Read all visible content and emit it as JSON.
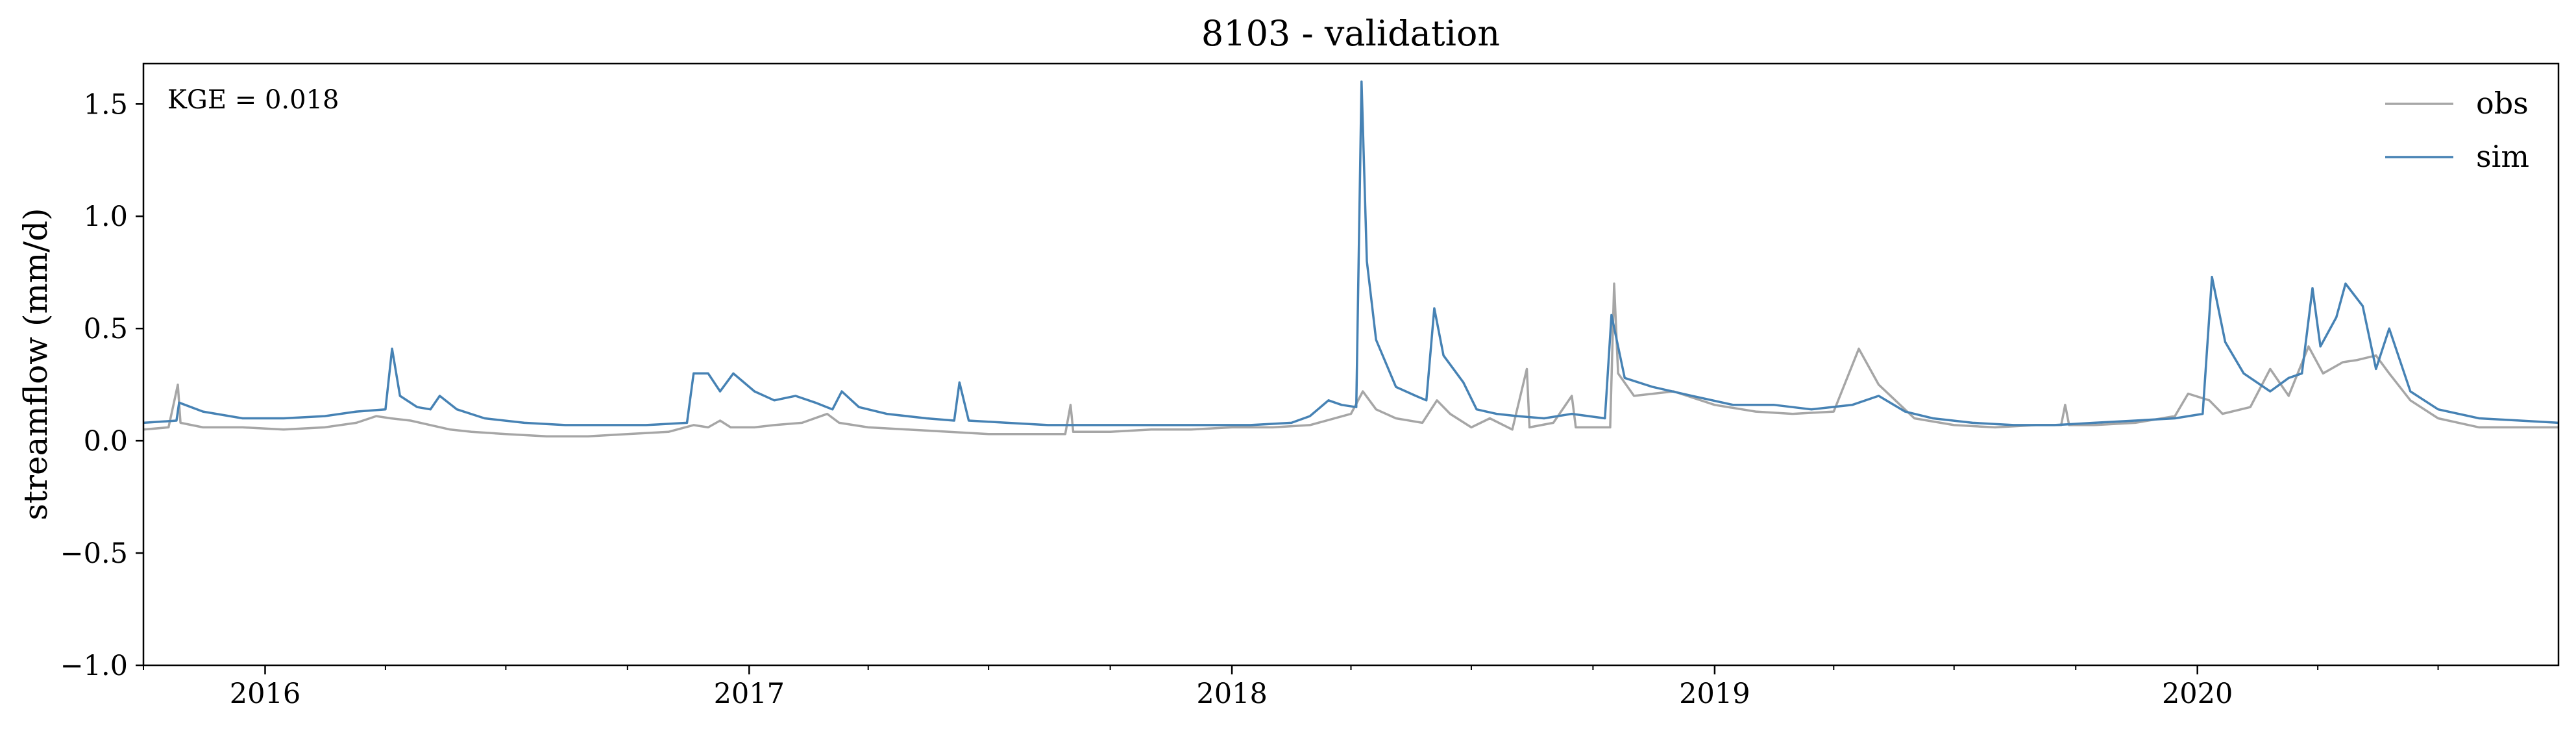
{
  "chart_data": {
    "type": "line",
    "title": "8103 - validation",
    "xlabel": "",
    "ylabel": "streamflow (mm/d)",
    "xlim": [
      "2015-10-01",
      "2020-09-30"
    ],
    "ylim": [
      -1.0,
      1.68
    ],
    "yticks": [
      -1.0,
      -0.5,
      0.0,
      0.5,
      1.0,
      1.5
    ],
    "ytick_labels": [
      "−1.0",
      "−0.5",
      "0.0",
      "0.5",
      "1.0",
      "1.5"
    ],
    "xticks": [
      "2016-01-01",
      "2017-01-01",
      "2018-01-01",
      "2019-01-01",
      "2020-01-01"
    ],
    "xtick_labels": [
      "2016",
      "2017",
      "2018",
      "2019",
      "2020"
    ],
    "grid": false,
    "legend_position": "top-right",
    "annotation": "KGE = 0.018",
    "series": [
      {
        "name": "obs",
        "color": "#a6a6a6",
        "points": [
          [
            "2015-10-01",
            0.05
          ],
          [
            "2015-10-20",
            0.06
          ],
          [
            "2015-10-27",
            0.25
          ],
          [
            "2015-10-29",
            0.08
          ],
          [
            "2015-11-15",
            0.06
          ],
          [
            "2015-12-15",
            0.06
          ],
          [
            "2016-01-15",
            0.05
          ],
          [
            "2016-02-15",
            0.06
          ],
          [
            "2016-03-10",
            0.08
          ],
          [
            "2016-03-25",
            0.11
          ],
          [
            "2016-04-05",
            0.1
          ],
          [
            "2016-04-20",
            0.09
          ],
          [
            "2016-05-05",
            0.07
          ],
          [
            "2016-05-20",
            0.05
          ],
          [
            "2016-06-05",
            0.04
          ],
          [
            "2016-07-01",
            0.03
          ],
          [
            "2016-08-01",
            0.02
          ],
          [
            "2016-09-01",
            0.02
          ],
          [
            "2016-10-01",
            0.03
          ],
          [
            "2016-11-01",
            0.04
          ],
          [
            "2016-11-20",
            0.07
          ],
          [
            "2016-12-01",
            0.06
          ],
          [
            "2016-12-10",
            0.09
          ],
          [
            "2016-12-18",
            0.06
          ],
          [
            "2017-01-05",
            0.06
          ],
          [
            "2017-01-20",
            0.07
          ],
          [
            "2017-02-10",
            0.08
          ],
          [
            "2017-03-01",
            0.12
          ],
          [
            "2017-03-10",
            0.08
          ],
          [
            "2017-04-01",
            0.06
          ],
          [
            "2017-05-01",
            0.05
          ],
          [
            "2017-06-01",
            0.04
          ],
          [
            "2017-07-01",
            0.03
          ],
          [
            "2017-08-01",
            0.03
          ],
          [
            "2017-08-28",
            0.03
          ],
          [
            "2017-09-01",
            0.16
          ],
          [
            "2017-09-03",
            0.04
          ],
          [
            "2017-10-01",
            0.04
          ],
          [
            "2017-11-01",
            0.05
          ],
          [
            "2017-12-01",
            0.05
          ],
          [
            "2018-01-01",
            0.06
          ],
          [
            "2018-02-01",
            0.06
          ],
          [
            "2018-03-01",
            0.07
          ],
          [
            "2018-04-01",
            0.12
          ],
          [
            "2018-04-10",
            0.22
          ],
          [
            "2018-04-20",
            0.14
          ],
          [
            "2018-05-05",
            0.1
          ],
          [
            "2018-05-25",
            0.08
          ],
          [
            "2018-06-05",
            0.18
          ],
          [
            "2018-06-15",
            0.12
          ],
          [
            "2018-07-01",
            0.06
          ],
          [
            "2018-07-15",
            0.1
          ],
          [
            "2018-08-01",
            0.05
          ],
          [
            "2018-08-12",
            0.32
          ],
          [
            "2018-08-14",
            0.06
          ],
          [
            "2018-09-01",
            0.08
          ],
          [
            "2018-09-15",
            0.2
          ],
          [
            "2018-09-18",
            0.06
          ],
          [
            "2018-10-14",
            0.06
          ],
          [
            "2018-10-17",
            0.7
          ],
          [
            "2018-10-20",
            0.3
          ],
          [
            "2018-11-01",
            0.2
          ],
          [
            "2018-12-01",
            0.22
          ],
          [
            "2019-01-01",
            0.16
          ],
          [
            "2019-02-01",
            0.13
          ],
          [
            "2019-03-01",
            0.12
          ],
          [
            "2019-04-01",
            0.13
          ],
          [
            "2019-04-20",
            0.41
          ],
          [
            "2019-05-05",
            0.25
          ],
          [
            "2019-06-01",
            0.1
          ],
          [
            "2019-07-01",
            0.07
          ],
          [
            "2019-08-01",
            0.06
          ],
          [
            "2019-09-01",
            0.07
          ],
          [
            "2019-09-20",
            0.07
          ],
          [
            "2019-09-23",
            0.16
          ],
          [
            "2019-09-26",
            0.07
          ],
          [
            "2019-10-15",
            0.07
          ],
          [
            "2019-11-15",
            0.08
          ],
          [
            "2019-12-15",
            0.11
          ],
          [
            "2019-12-25",
            0.21
          ],
          [
            "2020-01-10",
            0.18
          ],
          [
            "2020-01-20",
            0.12
          ],
          [
            "2020-02-10",
            0.15
          ],
          [
            "2020-02-25",
            0.32
          ],
          [
            "2020-03-10",
            0.2
          ],
          [
            "2020-03-25",
            0.42
          ],
          [
            "2020-04-05",
            0.3
          ],
          [
            "2020-04-20",
            0.35
          ],
          [
            "2020-05-01",
            0.36
          ],
          [
            "2020-05-15",
            0.38
          ],
          [
            "2020-05-25",
            0.3
          ],
          [
            "2020-06-10",
            0.18
          ],
          [
            "2020-07-01",
            0.1
          ],
          [
            "2020-08-01",
            0.06
          ],
          [
            "2020-09-01",
            0.06
          ],
          [
            "2020-09-30",
            0.06
          ]
        ]
      },
      {
        "name": "sim",
        "color": "#4682b4",
        "points": [
          [
            "2015-10-01",
            0.08
          ],
          [
            "2015-10-26",
            0.09
          ],
          [
            "2015-10-28",
            0.17
          ],
          [
            "2015-11-15",
            0.13
          ],
          [
            "2015-12-15",
            0.1
          ],
          [
            "2016-01-15",
            0.1
          ],
          [
            "2016-02-15",
            0.11
          ],
          [
            "2016-03-10",
            0.13
          ],
          [
            "2016-04-01",
            0.14
          ],
          [
            "2016-04-06",
            0.41
          ],
          [
            "2016-04-12",
            0.2
          ],
          [
            "2016-04-25",
            0.15
          ],
          [
            "2016-05-05",
            0.14
          ],
          [
            "2016-05-12",
            0.2
          ],
          [
            "2016-05-25",
            0.14
          ],
          [
            "2016-06-15",
            0.1
          ],
          [
            "2016-07-15",
            0.08
          ],
          [
            "2016-08-15",
            0.07
          ],
          [
            "2016-09-15",
            0.07
          ],
          [
            "2016-10-15",
            0.07
          ],
          [
            "2016-11-15",
            0.08
          ],
          [
            "2016-11-20",
            0.3
          ],
          [
            "2016-12-01",
            0.3
          ],
          [
            "2016-12-10",
            0.22
          ],
          [
            "2016-12-20",
            0.3
          ],
          [
            "2017-01-05",
            0.22
          ],
          [
            "2017-01-20",
            0.18
          ],
          [
            "2017-02-05",
            0.2
          ],
          [
            "2017-02-20",
            0.17
          ],
          [
            "2017-03-05",
            0.14
          ],
          [
            "2017-03-12",
            0.22
          ],
          [
            "2017-03-25",
            0.15
          ],
          [
            "2017-04-15",
            0.12
          ],
          [
            "2017-05-15",
            0.1
          ],
          [
            "2017-06-05",
            0.09
          ],
          [
            "2017-06-09",
            0.26
          ],
          [
            "2017-06-16",
            0.09
          ],
          [
            "2017-07-15",
            0.08
          ],
          [
            "2017-08-15",
            0.07
          ],
          [
            "2017-09-15",
            0.07
          ],
          [
            "2017-10-15",
            0.07
          ],
          [
            "2017-11-15",
            0.07
          ],
          [
            "2017-12-15",
            0.07
          ],
          [
            "2018-01-15",
            0.07
          ],
          [
            "2018-02-15",
            0.08
          ],
          [
            "2018-03-01",
            0.11
          ],
          [
            "2018-03-15",
            0.18
          ],
          [
            "2018-03-25",
            0.16
          ],
          [
            "2018-04-05",
            0.15
          ],
          [
            "2018-04-09",
            1.6
          ],
          [
            "2018-04-13",
            0.8
          ],
          [
            "2018-04-20",
            0.45
          ],
          [
            "2018-05-05",
            0.24
          ],
          [
            "2018-05-20",
            0.2
          ],
          [
            "2018-05-28",
            0.18
          ],
          [
            "2018-06-03",
            0.59
          ],
          [
            "2018-06-10",
            0.38
          ],
          [
            "2018-06-25",
            0.26
          ],
          [
            "2018-07-05",
            0.14
          ],
          [
            "2018-07-20",
            0.12
          ],
          [
            "2018-08-05",
            0.11
          ],
          [
            "2018-08-25",
            0.1
          ],
          [
            "2018-09-15",
            0.12
          ],
          [
            "2018-10-10",
            0.1
          ],
          [
            "2018-10-15",
            0.56
          ],
          [
            "2018-10-25",
            0.28
          ],
          [
            "2018-11-15",
            0.24
          ],
          [
            "2018-12-15",
            0.2
          ],
          [
            "2019-01-15",
            0.16
          ],
          [
            "2019-02-15",
            0.16
          ],
          [
            "2019-03-15",
            0.14
          ],
          [
            "2019-04-15",
            0.16
          ],
          [
            "2019-05-05",
            0.2
          ],
          [
            "2019-05-25",
            0.13
          ],
          [
            "2019-06-15",
            0.1
          ],
          [
            "2019-07-15",
            0.08
          ],
          [
            "2019-08-15",
            0.07
          ],
          [
            "2019-09-15",
            0.07
          ],
          [
            "2019-10-15",
            0.08
          ],
          [
            "2019-11-15",
            0.09
          ],
          [
            "2019-12-15",
            0.1
          ],
          [
            "2020-01-05",
            0.12
          ],
          [
            "2020-01-12",
            0.73
          ],
          [
            "2020-01-22",
            0.44
          ],
          [
            "2020-02-05",
            0.3
          ],
          [
            "2020-02-25",
            0.22
          ],
          [
            "2020-03-10",
            0.28
          ],
          [
            "2020-03-20",
            0.3
          ],
          [
            "2020-03-28",
            0.68
          ],
          [
            "2020-04-03",
            0.42
          ],
          [
            "2020-04-15",
            0.55
          ],
          [
            "2020-04-22",
            0.7
          ],
          [
            "2020-05-05",
            0.6
          ],
          [
            "2020-05-15",
            0.32
          ],
          [
            "2020-05-25",
            0.5
          ],
          [
            "2020-06-10",
            0.22
          ],
          [
            "2020-07-01",
            0.14
          ],
          [
            "2020-08-01",
            0.1
          ],
          [
            "2020-09-01",
            0.09
          ],
          [
            "2020-09-30",
            0.08
          ]
        ]
      }
    ]
  }
}
